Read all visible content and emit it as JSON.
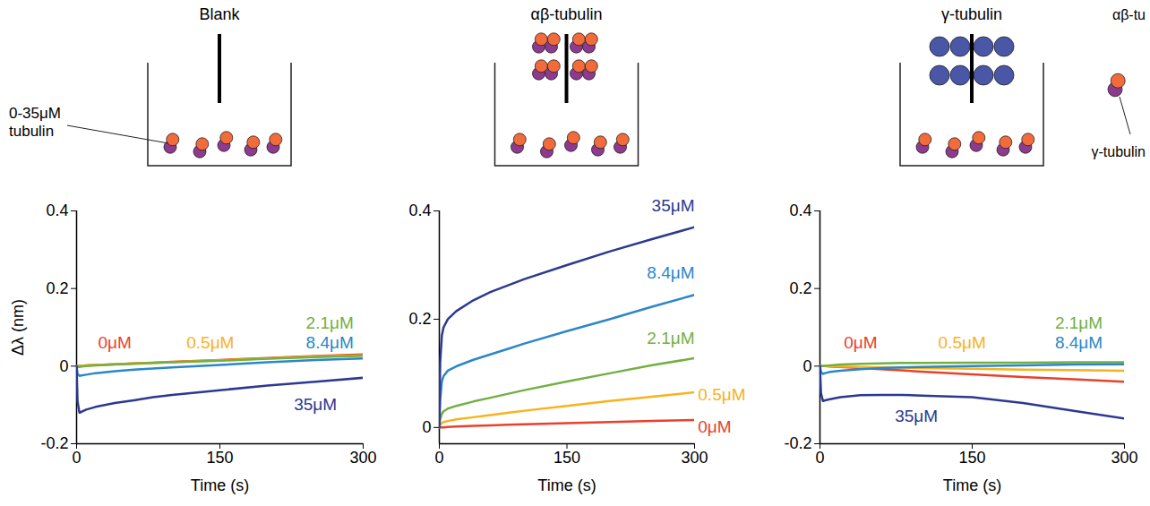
{
  "chart_data": [
    {
      "type": "line",
      "title": "Blank",
      "x_label": "Time (s)",
      "y_label": "Δλ (nm)",
      "xlim": [
        0,
        300
      ],
      "xticks": [
        0,
        150,
        300
      ],
      "ylim": [
        -0.2,
        0.4
      ],
      "yticks": [
        -0.2,
        0,
        0.2,
        0.4
      ],
      "x": [
        0,
        1,
        3,
        5,
        10,
        20,
        40,
        60,
        80,
        100,
        150,
        200,
        250,
        300
      ],
      "series": [
        {
          "name": "0μM",
          "color": "#e8412c",
          "values": [
            0,
            0,
            0.001,
            0.001,
            0.002,
            0.003,
            0.005,
            0.007,
            0.009,
            0.011,
            0.016,
            0.021,
            0.026,
            0.03
          ]
        },
        {
          "name": "0.5μM",
          "color": "#f9b21b",
          "values": [
            0,
            0,
            0,
            0.001,
            0.002,
            0.003,
            0.005,
            0.007,
            0.008,
            0.01,
            0.015,
            0.02,
            0.025,
            0.028
          ]
        },
        {
          "name": "2.1μM",
          "color": "#72b043",
          "values": [
            0,
            -0.002,
            -0.002,
            -0.001,
            0,
            0.002,
            0.004,
            0.006,
            0.008,
            0.01,
            0.014,
            0.019,
            0.023,
            0.027
          ]
        },
        {
          "name": "8.4μM",
          "color": "#2b87c8",
          "values": [
            0,
            -0.02,
            -0.025,
            -0.024,
            -0.022,
            -0.018,
            -0.013,
            -0.009,
            -0.006,
            -0.003,
            0.003,
            0.01,
            0.016,
            0.02
          ]
        },
        {
          "name": "35μM",
          "color": "#2b3990",
          "values": [
            0,
            -0.09,
            -0.12,
            -0.118,
            -0.112,
            -0.105,
            -0.095,
            -0.088,
            -0.08,
            -0.074,
            -0.062,
            -0.05,
            -0.04,
            -0.03
          ]
        }
      ]
    },
    {
      "type": "line",
      "title": "αβ-tubulin",
      "x_label": "Time (s)",
      "xlim": [
        0,
        300
      ],
      "xticks": [
        0,
        150,
        300
      ],
      "ylim": [
        -0.03,
        0.4
      ],
      "yticks": [
        0,
        0.2,
        0.4
      ],
      "x": [
        0,
        1,
        3,
        5,
        10,
        20,
        40,
        60,
        80,
        100,
        150,
        200,
        250,
        300
      ],
      "series": [
        {
          "name": "0μM",
          "color": "#e8412c",
          "values": [
            0,
            0,
            0,
            0,
            0.001,
            0.002,
            0.003,
            0.004,
            0.005,
            0.006,
            0.008,
            0.01,
            0.012,
            0.014
          ]
        },
        {
          "name": "0.5μM",
          "color": "#f9b21b",
          "values": [
            0,
            0.005,
            0.008,
            0.01,
            0.012,
            0.015,
            0.019,
            0.023,
            0.027,
            0.031,
            0.04,
            0.049,
            0.057,
            0.065
          ]
        },
        {
          "name": "2.1μM",
          "color": "#72b043",
          "values": [
            0,
            0.015,
            0.025,
            0.03,
            0.035,
            0.04,
            0.048,
            0.055,
            0.062,
            0.069,
            0.085,
            0.1,
            0.115,
            0.128
          ]
        },
        {
          "name": "8.4μM",
          "color": "#2b87c8",
          "values": [
            0,
            0.05,
            0.085,
            0.095,
            0.105,
            0.113,
            0.125,
            0.135,
            0.145,
            0.155,
            0.178,
            0.2,
            0.223,
            0.245
          ]
        },
        {
          "name": "35μM",
          "color": "#2b3990",
          "values": [
            0,
            0.12,
            0.17,
            0.185,
            0.2,
            0.215,
            0.235,
            0.25,
            0.262,
            0.274,
            0.3,
            0.325,
            0.348,
            0.37
          ]
        }
      ]
    },
    {
      "type": "line",
      "title": "γ-tubulin",
      "x_label": "Time (s)",
      "xlim": [
        0,
        300
      ],
      "xticks": [
        0,
        150,
        300
      ],
      "ylim": [
        -0.2,
        0.4
      ],
      "yticks": [
        -0.2,
        0,
        0.2,
        0.4
      ],
      "x": [
        0,
        1,
        3,
        5,
        10,
        20,
        40,
        60,
        80,
        100,
        150,
        200,
        250,
        300
      ],
      "series": [
        {
          "name": "0μM",
          "color": "#e8412c",
          "values": [
            0,
            0,
            0,
            0,
            -0.001,
            -0.002,
            -0.005,
            -0.008,
            -0.011,
            -0.014,
            -0.021,
            -0.028,
            -0.034,
            -0.04
          ]
        },
        {
          "name": "0.5μM",
          "color": "#f9b21b",
          "values": [
            0,
            0,
            0,
            0,
            0,
            -0.001,
            -0.002,
            -0.003,
            -0.004,
            -0.005,
            -0.007,
            -0.009,
            -0.01,
            -0.012
          ]
        },
        {
          "name": "2.1μM",
          "color": "#72b043",
          "values": [
            0,
            0,
            0,
            0.001,
            0.002,
            0.004,
            0.006,
            0.007,
            0.008,
            0.008,
            0.009,
            0.009,
            0.01,
            0.01
          ]
        },
        {
          "name": "8.4μM",
          "color": "#2b87c8",
          "values": [
            0,
            -0.015,
            -0.02,
            -0.018,
            -0.015,
            -0.012,
            -0.008,
            -0.005,
            -0.003,
            -0.002,
            0,
            0.002,
            0.004,
            0.005
          ]
        },
        {
          "name": "35μM",
          "color": "#2b3990",
          "values": [
            0,
            -0.07,
            -0.09,
            -0.088,
            -0.085,
            -0.08,
            -0.075,
            -0.074,
            -0.074,
            -0.076,
            -0.08,
            -0.095,
            -0.115,
            -0.135
          ]
        }
      ]
    }
  ],
  "schematic": {
    "label": "0-35μM tubulin",
    "fragment": [
      "αβ-tu",
      "γ-tubulin"
    ]
  }
}
